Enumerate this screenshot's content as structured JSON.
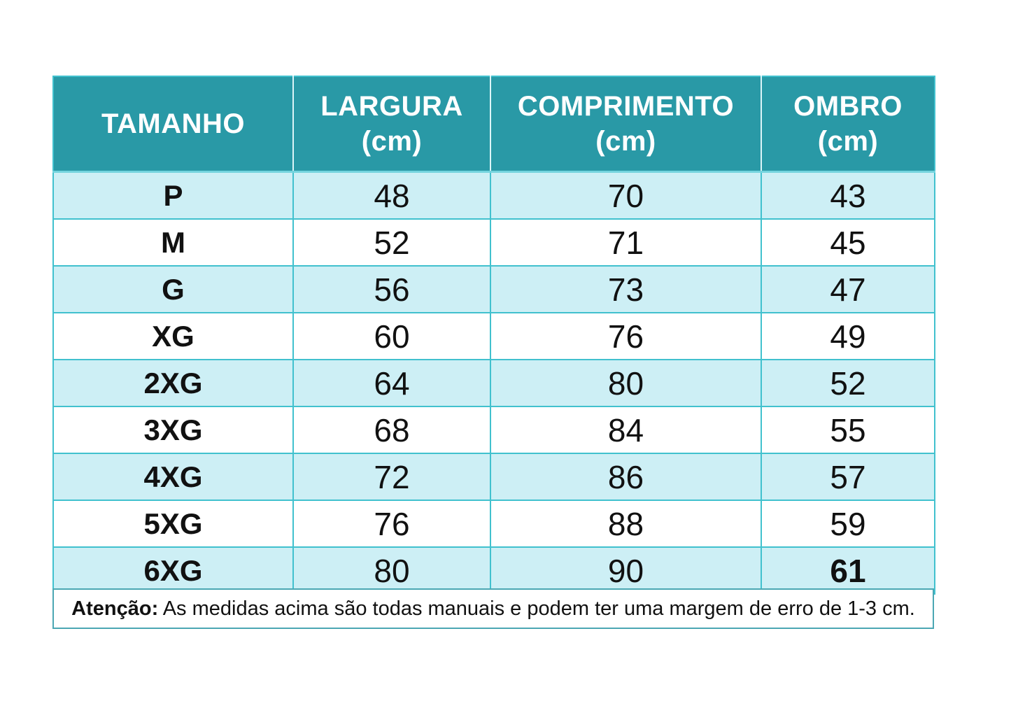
{
  "colors": {
    "header_bg": "#2999A6",
    "header_text": "#FFFFFF",
    "row_alt_bg": "#CDEFF5",
    "row_bg": "#FFFFFF",
    "grid_border": "#41C1CE",
    "header_divider": "#DCF5F8",
    "note_border": "#4BA7B3",
    "body_text": "#111111"
  },
  "table": {
    "columns": [
      {
        "label": "TAMANHO",
        "unit": ""
      },
      {
        "label": "LARGURA",
        "unit": "(cm)"
      },
      {
        "label": "COMPRIMENTO",
        "unit": "(cm)"
      },
      {
        "label": "OMBRO",
        "unit": "(cm)"
      }
    ],
    "rows": [
      {
        "size": "P",
        "largura": "48",
        "comprimento": "70",
        "ombro": "43"
      },
      {
        "size": "M",
        "largura": "52",
        "comprimento": "71",
        "ombro": "45"
      },
      {
        "size": "G",
        "largura": "56",
        "comprimento": "73",
        "ombro": "47"
      },
      {
        "size": "XG",
        "largura": "60",
        "comprimento": "76",
        "ombro": "49"
      },
      {
        "size": "2XG",
        "largura": "64",
        "comprimento": "80",
        "ombro": "52"
      },
      {
        "size": "3XG",
        "largura": "68",
        "comprimento": "84",
        "ombro": "55"
      },
      {
        "size": "4XG",
        "largura": "72",
        "comprimento": "86",
        "ombro": "57"
      },
      {
        "size": "5XG",
        "largura": "76",
        "comprimento": "88",
        "ombro": "59"
      },
      {
        "size": "6XG",
        "largura": "80",
        "comprimento": "90",
        "ombro": "61"
      }
    ]
  },
  "note": {
    "label": "Atenção:",
    "text": " As medidas acima são todas manuais e podem ter uma margem de erro de 1-3 cm."
  },
  "chart_data": {
    "type": "table",
    "title": "Tabela de medidas (size chart)",
    "columns": [
      "TAMANHO",
      "LARGURA (cm)",
      "COMPRIMENTO (cm)",
      "OMBRO (cm)"
    ],
    "rows": [
      [
        "P",
        48,
        70,
        43
      ],
      [
        "M",
        52,
        71,
        45
      ],
      [
        "G",
        56,
        73,
        47
      ],
      [
        "XG",
        60,
        76,
        49
      ],
      [
        "2XG",
        64,
        80,
        52
      ],
      [
        "3XG",
        68,
        84,
        55
      ],
      [
        "4XG",
        72,
        86,
        57
      ],
      [
        "5XG",
        76,
        88,
        59
      ],
      [
        "6XG",
        80,
        90,
        61
      ]
    ],
    "note": "Atenção: As medidas acima são todas manuais e podem ter uma margem de erro de 1-3 cm.",
    "layout": {
      "header_style": "teal",
      "zebra_rows": true,
      "first_row_shade": "light-cyan"
    }
  }
}
